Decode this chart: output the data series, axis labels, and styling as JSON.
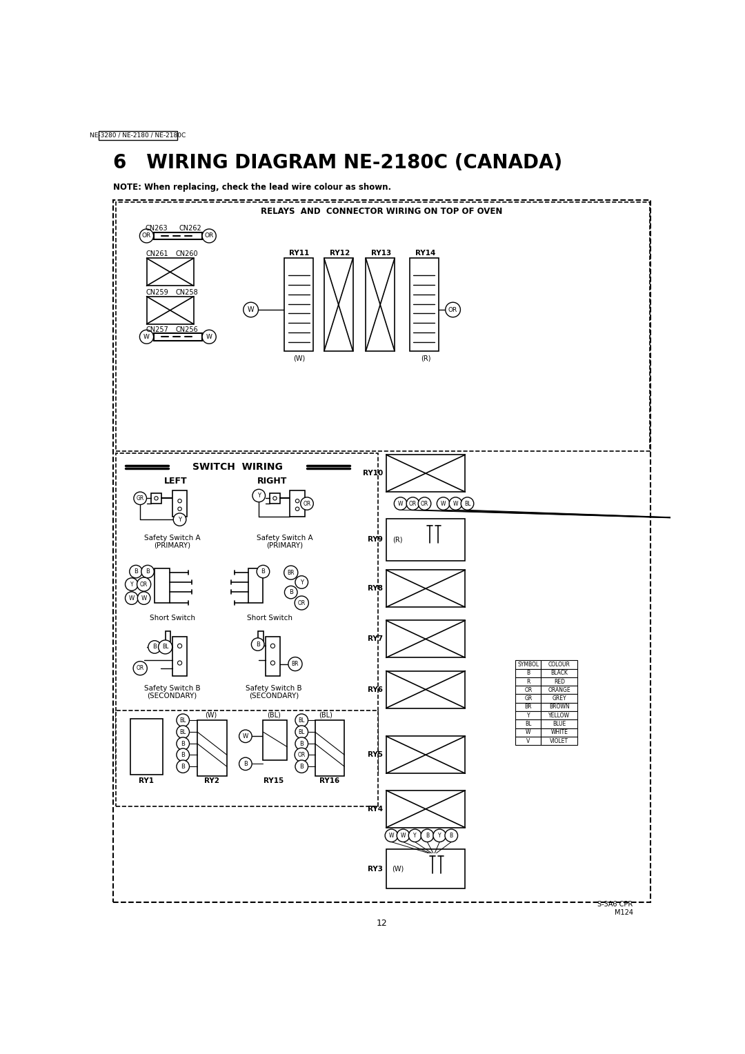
{
  "page_title": "6   WIRING DIAGRAM NE-2180C (CANADA)",
  "header_label": "NE-3280 / NE-2180 / NE-2180C",
  "note_text": "NOTE: When replacing, check the lead wire colour as shown.",
  "page_number": "12",
  "diagram_title": "RELAYS  AND  CONNECTOR WIRING ON TOP OF OVEN",
  "switch_wiring_title": "SWITCH  WIRING",
  "footer_text": "S-3A6 CPR\nM124",
  "bg_color": "#ffffff",
  "color_table_rows": [
    [
      "B",
      "BLACK"
    ],
    [
      "R",
      "RED"
    ],
    [
      "OR",
      "ORANGE"
    ],
    [
      "GR",
      "GREY"
    ],
    [
      "BR",
      "BROWN"
    ],
    [
      "Y",
      "YELLOW"
    ],
    [
      "BL",
      "BLUE"
    ],
    [
      "W",
      "WHITE"
    ],
    [
      "V",
      "VIOLET"
    ]
  ]
}
